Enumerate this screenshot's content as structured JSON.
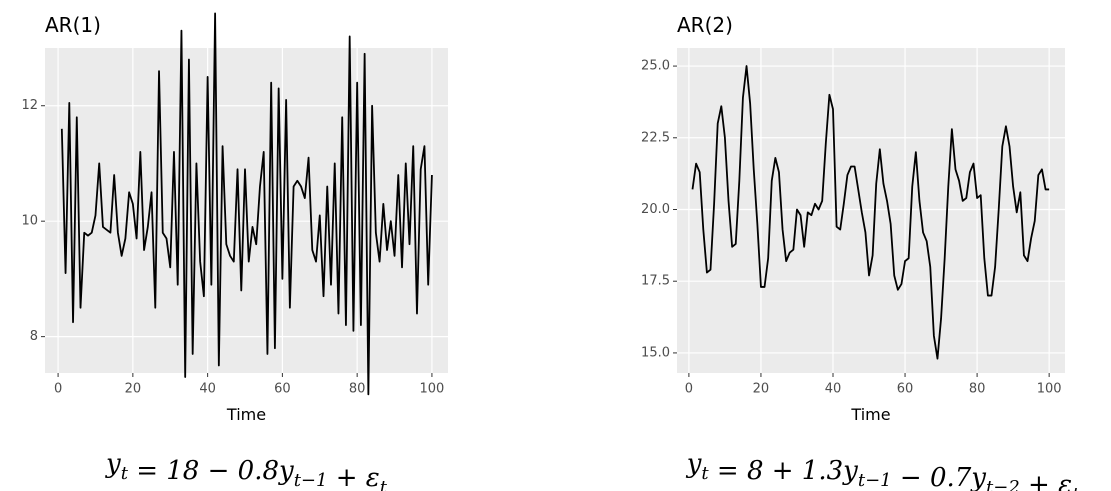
{
  "chart_data": [
    {
      "type": "line",
      "title": "AR(1)",
      "xlabel": "Time",
      "color": "#000000",
      "caption": [
        [
          "y",
          "t"
        ],
        [
          " = 18  − 0.8y",
          "t−1"
        ],
        [
          " +  ε",
          "t"
        ]
      ],
      "x": [
        1,
        2,
        3,
        4,
        5,
        6,
        7,
        8,
        9,
        10,
        11,
        12,
        13,
        14,
        15,
        16,
        17,
        18,
        19,
        20,
        21,
        22,
        23,
        24,
        25,
        26,
        27,
        28,
        29,
        30,
        31,
        32,
        33,
        34,
        35,
        36,
        37,
        38,
        39,
        40,
        41,
        42,
        43,
        44,
        45,
        46,
        47,
        48,
        49,
        50,
        51,
        52,
        53,
        54,
        55,
        56,
        57,
        58,
        59,
        60,
        61,
        62,
        63,
        64,
        65,
        66,
        67,
        68,
        69,
        70,
        71,
        72,
        73,
        74,
        75,
        76,
        77,
        78,
        79,
        80,
        81,
        82,
        83,
        84,
        85,
        86,
        87,
        88,
        89,
        90,
        91,
        92,
        93,
        94,
        95,
        96,
        97,
        98,
        99,
        100
      ],
      "values": [
        11.6,
        9.1,
        12.05,
        8.25,
        11.8,
        8.5,
        9.8,
        9.75,
        9.8,
        10.1,
        11.0,
        9.9,
        9.85,
        9.8,
        10.8,
        9.8,
        9.4,
        9.7,
        10.5,
        10.3,
        9.7,
        11.2,
        9.5,
        9.9,
        10.5,
        8.5,
        12.6,
        9.8,
        9.7,
        9.2,
        11.2,
        8.9,
        13.3,
        7.3,
        12.8,
        7.7,
        11.0,
        9.3,
        8.7,
        12.5,
        8.9,
        13.6,
        7.5,
        11.3,
        9.6,
        9.4,
        9.3,
        10.9,
        8.8,
        10.9,
        9.3,
        9.9,
        9.6,
        10.6,
        11.2,
        7.7,
        12.4,
        7.8,
        12.3,
        9.0,
        12.1,
        8.5,
        10.6,
        10.7,
        10.6,
        10.4,
        11.1,
        9.5,
        9.3,
        10.1,
        8.7,
        10.6,
        8.9,
        11.0,
        8.4,
        11.8,
        8.2,
        13.2,
        8.1,
        12.4,
        8.2,
        12.9,
        7.0,
        12.0,
        9.8,
        9.3,
        10.3,
        9.5,
        10.0,
        9.4,
        10.8,
        9.2,
        11.0,
        9.6,
        11.3,
        8.4,
        10.9,
        11.3,
        8.9,
        10.8
      ],
      "xlim": [
        -3.5,
        104.3
      ],
      "xticks": [
        0,
        20,
        40,
        60,
        80,
        100
      ],
      "ylim": [
        7.37,
        13.0
      ],
      "yticks": [
        8,
        10,
        12
      ],
      "grid": true
    },
    {
      "type": "line",
      "title": "AR(2)",
      "xlabel": "Time",
      "color": "#000000",
      "caption": [
        [
          "y",
          "t"
        ],
        [
          " = 8 + 1.3y",
          "t−1"
        ],
        [
          " − 0.7y",
          "t−2"
        ],
        [
          " +  ε",
          "t"
        ]
      ],
      "x": [
        1,
        2,
        3,
        4,
        5,
        6,
        7,
        8,
        9,
        10,
        11,
        12,
        13,
        14,
        15,
        16,
        17,
        18,
        19,
        20,
        21,
        22,
        23,
        24,
        25,
        26,
        27,
        28,
        29,
        30,
        31,
        32,
        33,
        34,
        35,
        36,
        37,
        38,
        39,
        40,
        41,
        42,
        43,
        44,
        45,
        46,
        47,
        48,
        49,
        50,
        51,
        52,
        53,
        54,
        55,
        56,
        57,
        58,
        59,
        60,
        61,
        62,
        63,
        64,
        65,
        66,
        67,
        68,
        69,
        70,
        71,
        72,
        73,
        74,
        75,
        76,
        77,
        78,
        79,
        80,
        81,
        82,
        83,
        84,
        85,
        86,
        87,
        88,
        89,
        90,
        91,
        92,
        93,
        94,
        95,
        96,
        97,
        98,
        99,
        100
      ],
      "values": [
        20.7,
        21.6,
        21.3,
        19.3,
        17.8,
        17.9,
        20.2,
        23.0,
        23.6,
        22.5,
        20.3,
        18.7,
        18.8,
        21.0,
        23.9,
        25.0,
        23.7,
        21.4,
        19.5,
        17.3,
        17.3,
        18.3,
        21.0,
        21.8,
        21.3,
        19.3,
        18.2,
        18.5,
        18.6,
        20.0,
        19.8,
        18.7,
        19.9,
        19.8,
        20.2,
        20.0,
        20.3,
        22.3,
        24.0,
        23.5,
        19.4,
        19.3,
        20.2,
        21.2,
        21.5,
        21.5,
        20.7,
        19.9,
        19.2,
        17.7,
        18.4,
        20.9,
        22.1,
        20.9,
        20.3,
        19.5,
        17.7,
        17.2,
        17.4,
        18.2,
        18.3,
        20.8,
        22.0,
        20.3,
        19.2,
        18.9,
        18.0,
        15.6,
        14.8,
        16.2,
        18.3,
        20.8,
        22.8,
        21.4,
        21.0,
        20.3,
        20.4,
        21.3,
        21.6,
        20.4,
        20.5,
        18.3,
        17.0,
        17.0,
        18.0,
        20.0,
        22.2,
        22.9,
        22.2,
        20.8,
        19.9,
        20.6,
        18.4,
        18.2,
        19.0,
        19.6,
        21.2,
        21.4,
        20.7,
        20.7
      ],
      "xlim": [
        -3.3,
        104.4
      ],
      "xticks": [
        0,
        20,
        40,
        60,
        80,
        100
      ],
      "ylim": [
        14.3,
        25.63
      ],
      "yticks": [
        {
          "value": 15,
          "label": "15.0"
        },
        17.5,
        {
          "value": 20,
          "label": "20.0"
        },
        22.5,
        {
          "value": 25,
          "label": "25.0"
        }
      ],
      "grid": true
    }
  ]
}
